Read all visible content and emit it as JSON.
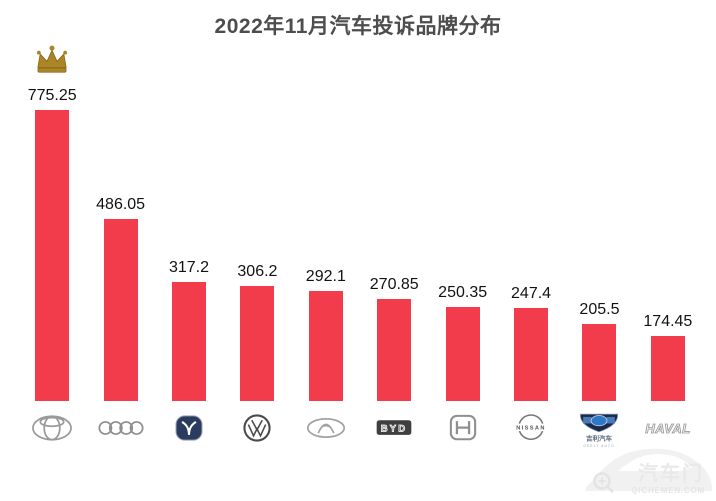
{
  "chart_data": {
    "type": "bar",
    "title": "2022年11月汽车投诉品牌分布",
    "categories": [
      "Toyota",
      "Audi",
      "Changan",
      "Volkswagen",
      "Chery",
      "BYD",
      "Honda",
      "Nissan",
      "Geely",
      "Haval"
    ],
    "values": [
      775.25,
      486.05,
      317.2,
      306.2,
      292.1,
      270.85,
      250.35,
      247.4,
      205.5,
      174.45
    ],
    "value_labels": [
      "775.25",
      "486.05",
      "317.2",
      "306.2",
      "292.1",
      "270.85",
      "250.35",
      "247.4",
      "205.5",
      "174.45"
    ],
    "ylim": [
      0,
      800
    ],
    "xlabel": "",
    "ylabel": "",
    "grid": false,
    "legend": false,
    "bar_color": "#F23C4C",
    "value_label_color": "#121212",
    "category_display": "brand-logos",
    "top_bar_marker": "gold crown above highest bar (Toyota)"
  },
  "crown": {
    "icon": "crown-icon",
    "fill": "#AB8526",
    "stroke": "#8A6A1A"
  },
  "logo_texts": {
    "byd": "BYD",
    "nissan": "NISSAN",
    "geely_cn": "吉利汽车",
    "geely_en": "GEELY AUTO",
    "haval": "HAVAL"
  },
  "watermark": {
    "brand": "汽车门",
    "domain": "QICHEMEN.COM",
    "color": "#E9E9E9"
  }
}
